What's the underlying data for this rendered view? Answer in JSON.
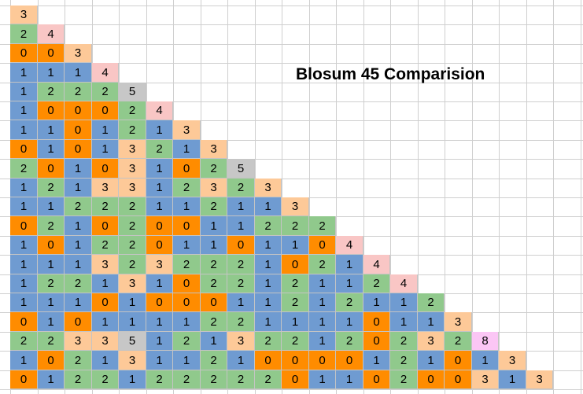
{
  "title": "Blosum 45 Comparision",
  "colors": {
    "0": "#ff8c00",
    "1": "#6f9bd1",
    "2": "#90c98c",
    "3": "#fdc998",
    "4": "#f9c6c5",
    "5": "#c7c7c7",
    "8": "#fbc6f5"
  },
  "matrix": [
    [
      "3"
    ],
    [
      "2",
      "4"
    ],
    [
      "0",
      "0",
      "3"
    ],
    [
      "1",
      "1",
      "1",
      "4"
    ],
    [
      "1",
      "2",
      "2",
      "2",
      "5"
    ],
    [
      "1",
      "0",
      "0",
      "0",
      "2",
      "4"
    ],
    [
      "1",
      "1",
      "0",
      "1",
      "2",
      "1",
      "3"
    ],
    [
      "0",
      "1",
      "0",
      "1",
      "3",
      "2",
      "1",
      "3"
    ],
    [
      "2",
      "0",
      "1",
      "0",
      "3",
      "1",
      "0",
      "2",
      "5"
    ],
    [
      "1",
      "2",
      "1",
      "3",
      "3",
      "1",
      "2",
      "3",
      "2",
      "3"
    ],
    [
      "1",
      "1",
      "2",
      "2",
      "2",
      "1",
      "1",
      "2",
      "1",
      "1",
      "3"
    ],
    [
      "0",
      "2",
      "1",
      "0",
      "2",
      "0",
      "0",
      "1",
      "1",
      "2",
      "2",
      "2"
    ],
    [
      "1",
      "0",
      "1",
      "2",
      "2",
      "0",
      "1",
      "1",
      "0",
      "1",
      "1",
      "0",
      "4"
    ],
    [
      "1",
      "1",
      "1",
      "3",
      "2",
      "3",
      "2",
      "2",
      "2",
      "1",
      "0",
      "2",
      "1",
      "4"
    ],
    [
      "1",
      "2",
      "2",
      "1",
      "3",
      "1",
      "0",
      "2",
      "2",
      "1",
      "2",
      "1",
      "1",
      "2",
      "4"
    ],
    [
      "1",
      "1",
      "1",
      "0",
      "1",
      "0",
      "0",
      "0",
      "1",
      "1",
      "2",
      "1",
      "2",
      "1",
      "1",
      "2"
    ],
    [
      "0",
      "1",
      "0",
      "1",
      "1",
      "1",
      "1",
      "2",
      "2",
      "1",
      "1",
      "1",
      "1",
      "0",
      "1",
      "1",
      "3"
    ],
    [
      "2",
      "2",
      "3",
      "3",
      "5",
      "1",
      "2",
      "1",
      "3",
      "2",
      "2",
      "1",
      "2",
      "0",
      "2",
      "3",
      "2",
      "8"
    ],
    [
      "1",
      "0",
      "2",
      "1",
      "3",
      "1",
      "1",
      "2",
      "1",
      "0",
      "0",
      "0",
      "0",
      "1",
      "2",
      "1",
      "0",
      "1",
      "3"
    ],
    [
      "0",
      "1",
      "2",
      "2",
      "1",
      "2",
      "2",
      "2",
      "2",
      "2",
      "0",
      "1",
      "1",
      "0",
      "2",
      "0",
      "0",
      "3",
      "1",
      "3"
    ]
  ]
}
